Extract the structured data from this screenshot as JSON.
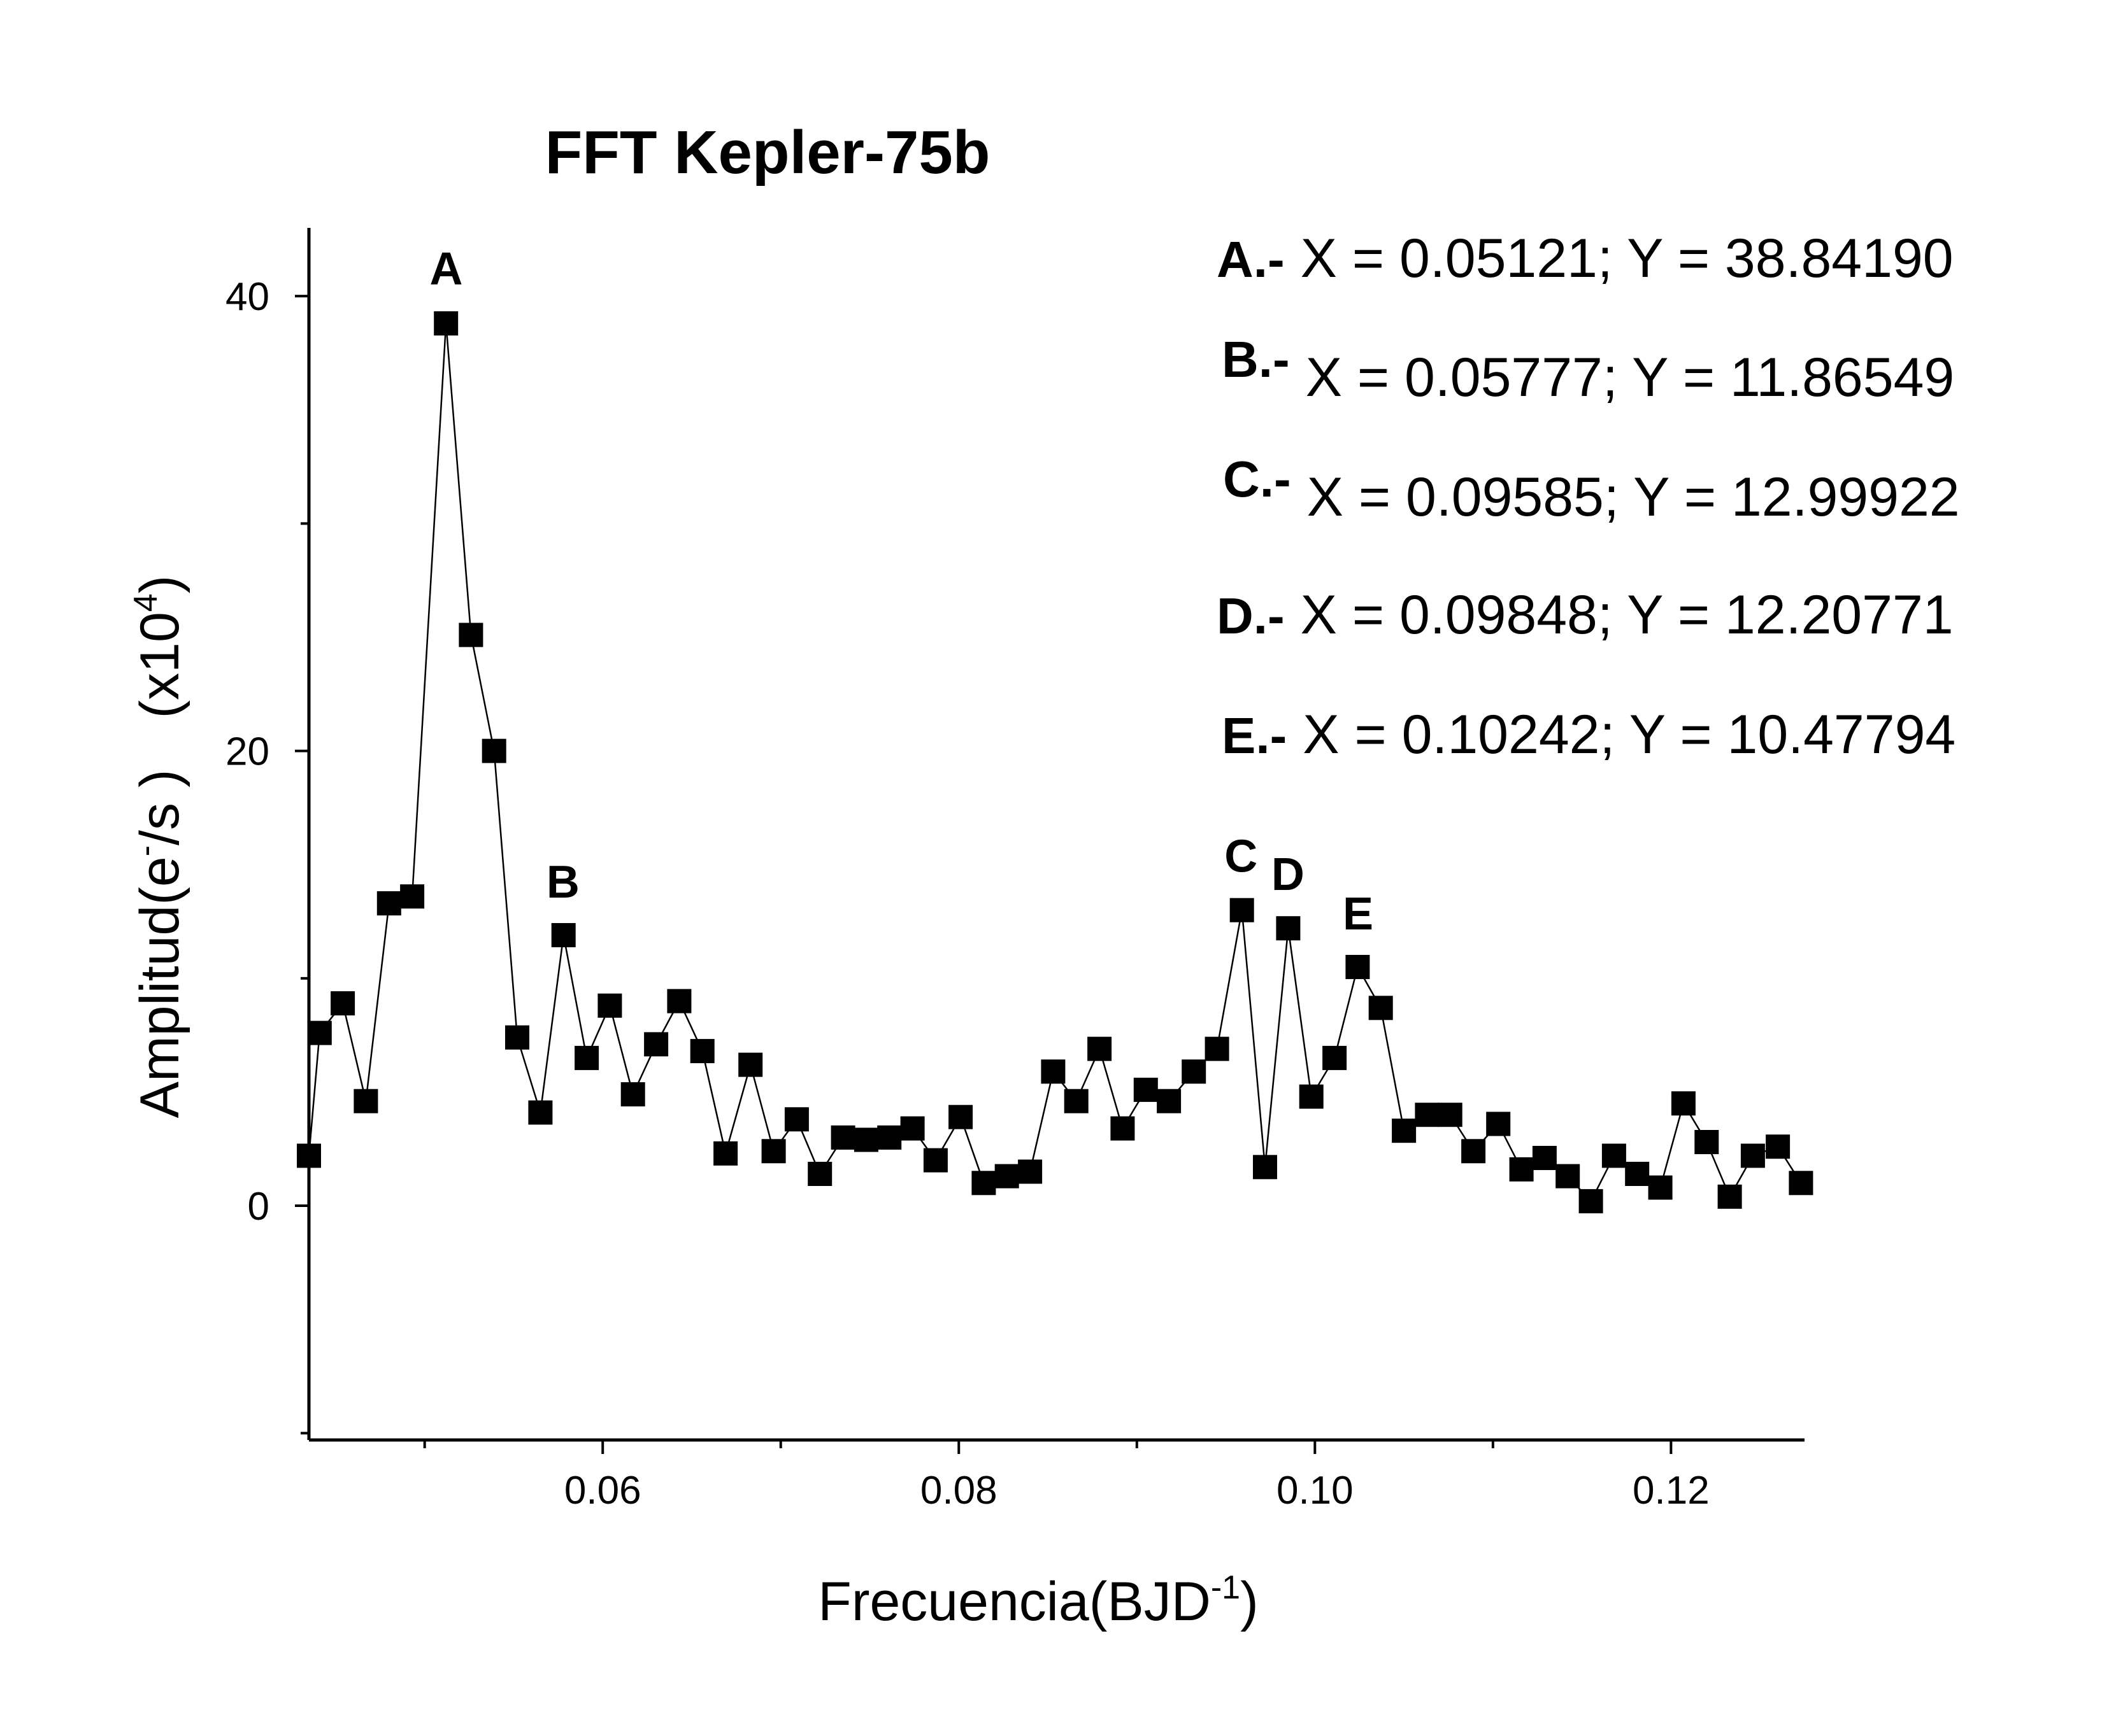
{
  "chart_data": {
    "type": "scatter",
    "title": "FFT Kepler-75b",
    "xlabel": "Frecuencia(BJD",
    "xlabel_sup": "-1",
    "xlabel_close": ")",
    "ylabel": "Amplitud(e",
    "ylabel_sup1": "-",
    "ylabel_mid": "/s )",
    "ylabel_scale": "(x10",
    "ylabel_sup2": "4",
    "ylabel_close": ")",
    "xlim": [
      0.0435,
      0.1275
    ],
    "ylim": [
      -10.3,
      43
    ],
    "x_ticks": [
      0.06,
      0.08,
      0.1,
      0.12
    ],
    "x_tick_labels": [
      "0.06",
      "0.08",
      "0.10",
      "0.12"
    ],
    "x_minor_ticks": [
      0.05,
      0.07,
      0.09,
      0.11
    ],
    "y_ticks": [
      0,
      20,
      40
    ],
    "y_tick_labels": [
      "0",
      "20",
      "40"
    ],
    "y_minor_ticks": [
      -10,
      10,
      30
    ],
    "grid": false,
    "marker": "square",
    "color": "#000000",
    "series": [
      {
        "x": [
          0.0435,
          0.0441,
          0.0454,
          0.0467,
          0.048,
          0.0493,
          0.0512,
          0.0526,
          0.0539,
          0.0552,
          0.0565,
          0.0578,
          0.0591,
          0.0604,
          0.0617,
          0.063,
          0.0643,
          0.0656,
          0.0669,
          0.0683,
          0.0696,
          0.0709,
          0.0722,
          0.0735,
          0.0748,
          0.0761,
          0.0774,
          0.0787,
          0.0801,
          0.0814,
          0.0827,
          0.084,
          0.0853,
          0.0866,
          0.0879,
          0.0892,
          0.0905,
          0.0918,
          0.0932,
          0.0945,
          0.0959,
          0.0972,
          0.0985,
          0.0998,
          0.1011,
          0.1024,
          0.1037,
          0.105,
          0.1063,
          0.1076,
          0.1089,
          0.1103,
          0.1116,
          0.1129,
          0.1142,
          0.1155,
          0.1168,
          0.1181,
          0.1194,
          0.1207,
          0.122,
          0.1233,
          0.1246,
          0.126,
          0.1273
        ],
        "y": [
          2.2,
          7.6,
          8.9,
          4.6,
          13.3,
          13.6,
          38.8,
          25.1,
          20.0,
          7.4,
          4.1,
          11.9,
          6.5,
          8.8,
          4.9,
          7.1,
          9.0,
          6.8,
          2.3,
          6.2,
          2.4,
          3.8,
          1.4,
          3.0,
          2.9,
          3.0,
          3.4,
          2.0,
          3.9,
          1.0,
          1.3,
          1.5,
          5.9,
          4.6,
          6.9,
          3.4,
          5.1,
          4.6,
          5.9,
          6.9,
          13.0,
          1.7,
          12.2,
          4.8,
          6.5,
          10.5,
          8.7,
          3.3,
          4.0,
          4.0,
          2.4,
          3.6,
          1.6,
          2.1,
          1.3,
          0.2,
          2.2,
          1.4,
          0.8,
          4.5,
          2.8,
          0.4,
          2.2,
          2.6,
          1.0
        ]
      }
    ],
    "annotations": [
      {
        "letter": "A",
        "x": 0.05121,
        "y": 38.8419
      },
      {
        "letter": "B",
        "x": 0.05777,
        "y": 11.86549
      },
      {
        "letter": "C",
        "x": 0.09585,
        "y": 12.99922
      },
      {
        "letter": "D",
        "x": 0.09848,
        "y": 12.20771
      },
      {
        "letter": "E",
        "x": 0.10242,
        "y": 10.47794
      }
    ],
    "legend_position": "top-right",
    "legend": [
      {
        "label": "A.-",
        "text": "X = 0.05121; Y = 38.84190"
      },
      {
        "label": "B.-",
        "text": "X = 0.05777; Y = 11.86549"
      },
      {
        "label": "C.-",
        "text": "X = 0.09585; Y = 12.99922"
      },
      {
        "label": "D.-",
        "text": "X = 0.09848; Y = 12.20771"
      },
      {
        "label": "E.-",
        "text": "X = 0.10242; Y = 10.47794"
      }
    ]
  }
}
